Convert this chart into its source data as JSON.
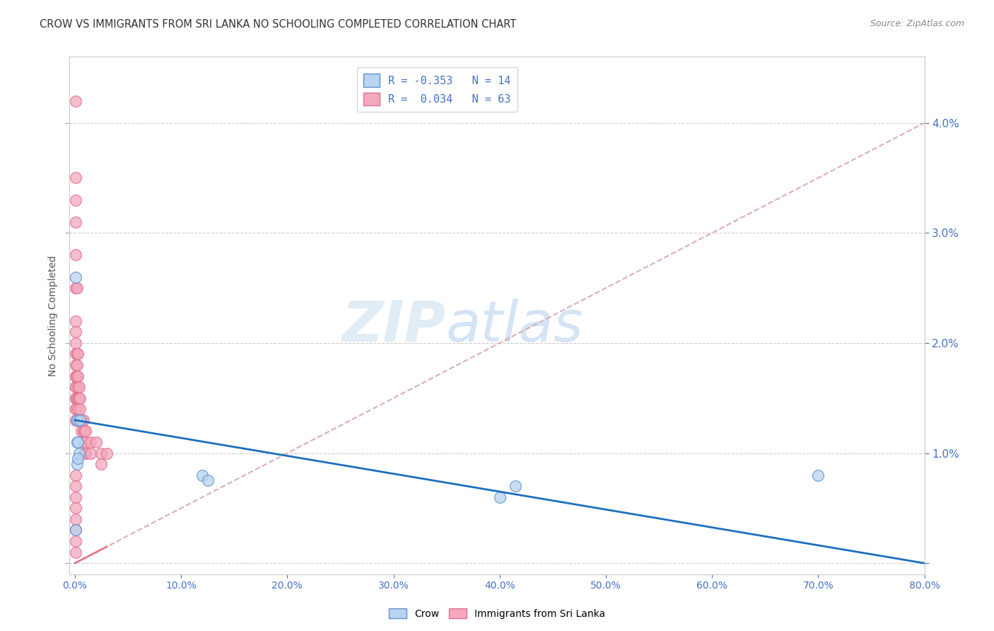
{
  "title": "CROW VS IMMIGRANTS FROM SRI LANKA NO SCHOOLING COMPLETED CORRELATION CHART",
  "source": "Source: ZipAtlas.com",
  "ylabel": "No Schooling Completed",
  "watermark_zip": "ZIP",
  "watermark_atlas": "atlas",
  "crow_r": -0.353,
  "crow_n": 14,
  "srilanka_r": 0.034,
  "srilanka_n": 63,
  "xlim": [
    -0.005,
    0.8
  ],
  "ylim": [
    -0.001,
    0.046
  ],
  "xticks": [
    0.0,
    0.1,
    0.2,
    0.3,
    0.4,
    0.5,
    0.6,
    0.7,
    0.8
  ],
  "xtick_labels": [
    "0.0%",
    "10.0%",
    "20.0%",
    "30.0%",
    "40.0%",
    "50.0%",
    "60.0%",
    "70.0%",
    "80.0%"
  ],
  "yticks": [
    0.0,
    0.01,
    0.02,
    0.03,
    0.04
  ],
  "ytick_labels_right": [
    "",
    "1.0%",
    "2.0%",
    "3.0%",
    "4.0%"
  ],
  "crow_line_x": [
    0.0,
    0.8
  ],
  "crow_line_y": [
    0.013,
    0.0
  ],
  "srilanka_line_x": [
    0.0,
    0.8
  ],
  "srilanka_line_y": [
    0.0,
    0.04
  ],
  "crow_scatter_x": [
    0.001,
    0.002,
    0.002,
    0.003,
    0.004,
    0.005,
    0.12,
    0.125,
    0.4,
    0.415,
    0.7,
    0.002,
    0.003,
    0.001
  ],
  "crow_scatter_y": [
    0.026,
    0.013,
    0.011,
    0.011,
    0.01,
    0.013,
    0.008,
    0.0075,
    0.006,
    0.007,
    0.008,
    0.009,
    0.0095,
    0.003
  ],
  "srilanka_scatter_x": [
    0.0005,
    0.0005,
    0.0005,
    0.0005,
    0.001,
    0.001,
    0.001,
    0.001,
    0.001,
    0.001,
    0.001,
    0.001,
    0.001,
    0.001,
    0.001,
    0.001,
    0.001,
    0.001,
    0.001,
    0.001,
    0.002,
    0.002,
    0.002,
    0.002,
    0.002,
    0.002,
    0.003,
    0.003,
    0.003,
    0.003,
    0.003,
    0.003,
    0.004,
    0.004,
    0.004,
    0.005,
    0.005,
    0.005,
    0.006,
    0.006,
    0.007,
    0.008,
    0.008,
    0.009,
    0.009,
    0.009,
    0.01,
    0.01,
    0.01,
    0.015,
    0.015,
    0.02,
    0.025,
    0.025,
    0.03,
    0.001,
    0.001,
    0.001,
    0.001,
    0.001,
    0.001,
    0.001,
    0.001
  ],
  "srilanka_scatter_y": [
    0.042,
    0.035,
    0.033,
    0.031,
    0.028,
    0.025,
    0.022,
    0.021,
    0.02,
    0.019,
    0.018,
    0.017,
    0.017,
    0.016,
    0.016,
    0.015,
    0.015,
    0.014,
    0.014,
    0.013,
    0.025,
    0.019,
    0.018,
    0.017,
    0.015,
    0.013,
    0.019,
    0.017,
    0.016,
    0.015,
    0.014,
    0.013,
    0.016,
    0.015,
    0.013,
    0.015,
    0.014,
    0.013,
    0.013,
    0.012,
    0.013,
    0.013,
    0.012,
    0.012,
    0.011,
    0.01,
    0.012,
    0.011,
    0.01,
    0.011,
    0.01,
    0.011,
    0.01,
    0.009,
    0.01,
    0.008,
    0.007,
    0.006,
    0.005,
    0.004,
    0.003,
    0.002,
    0.001
  ],
  "crow_line_color": "#1c6fbe",
  "srilanka_line_color": "#e07888",
  "srilanka_dash_color": "#d4a0b0",
  "title_fontsize": 10.5,
  "source_fontsize": 9,
  "axis_label_color": "#4472c4",
  "ylabel_color": "#555555",
  "background_color": "#ffffff",
  "grid_color": "#cccccc",
  "scatter_crow_face": "#b8d4f0",
  "scatter_crow_edge": "#6090d0",
  "scatter_sl_face": "#f4a8bc",
  "scatter_sl_edge": "#e07090"
}
